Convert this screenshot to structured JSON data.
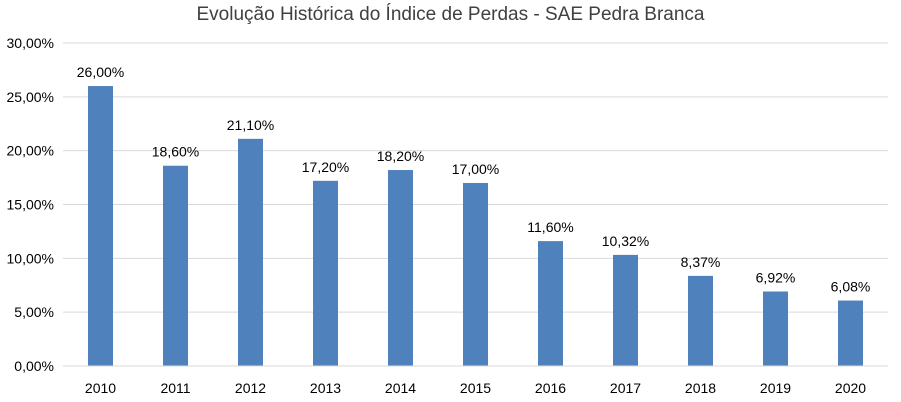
{
  "chart_data": {
    "type": "bar",
    "title": "Evolução Histórica do Índice de Perdas - SAE Pedra Branca",
    "xlabel": "",
    "ylabel": "",
    "categories": [
      "2010",
      "2011",
      "2012",
      "2013",
      "2014",
      "2015",
      "2016",
      "2017",
      "2018",
      "2019",
      "2020"
    ],
    "values": [
      26.0,
      18.6,
      21.1,
      17.2,
      18.2,
      17.0,
      11.6,
      10.32,
      8.37,
      6.92,
      6.08
    ],
    "value_labels": [
      "26,00%",
      "18,60%",
      "21,10%",
      "17,20%",
      "18,20%",
      "17,00%",
      "11,60%",
      "10,32%",
      "8,37%",
      "6,92%",
      "6,08%"
    ],
    "ylim": [
      0,
      30
    ],
    "yticks": [
      0,
      5,
      10,
      15,
      20,
      25,
      30
    ],
    "ytick_labels": [
      "0,00%",
      "5,00%",
      "10,00%",
      "15,00%",
      "20,00%",
      "25,00%",
      "30,00%"
    ],
    "grid": true,
    "legend": "none",
    "colors": {
      "bar": "#4f81bd",
      "grid": "#d9d9d9",
      "text": "#000000",
      "title": "#404040"
    }
  }
}
